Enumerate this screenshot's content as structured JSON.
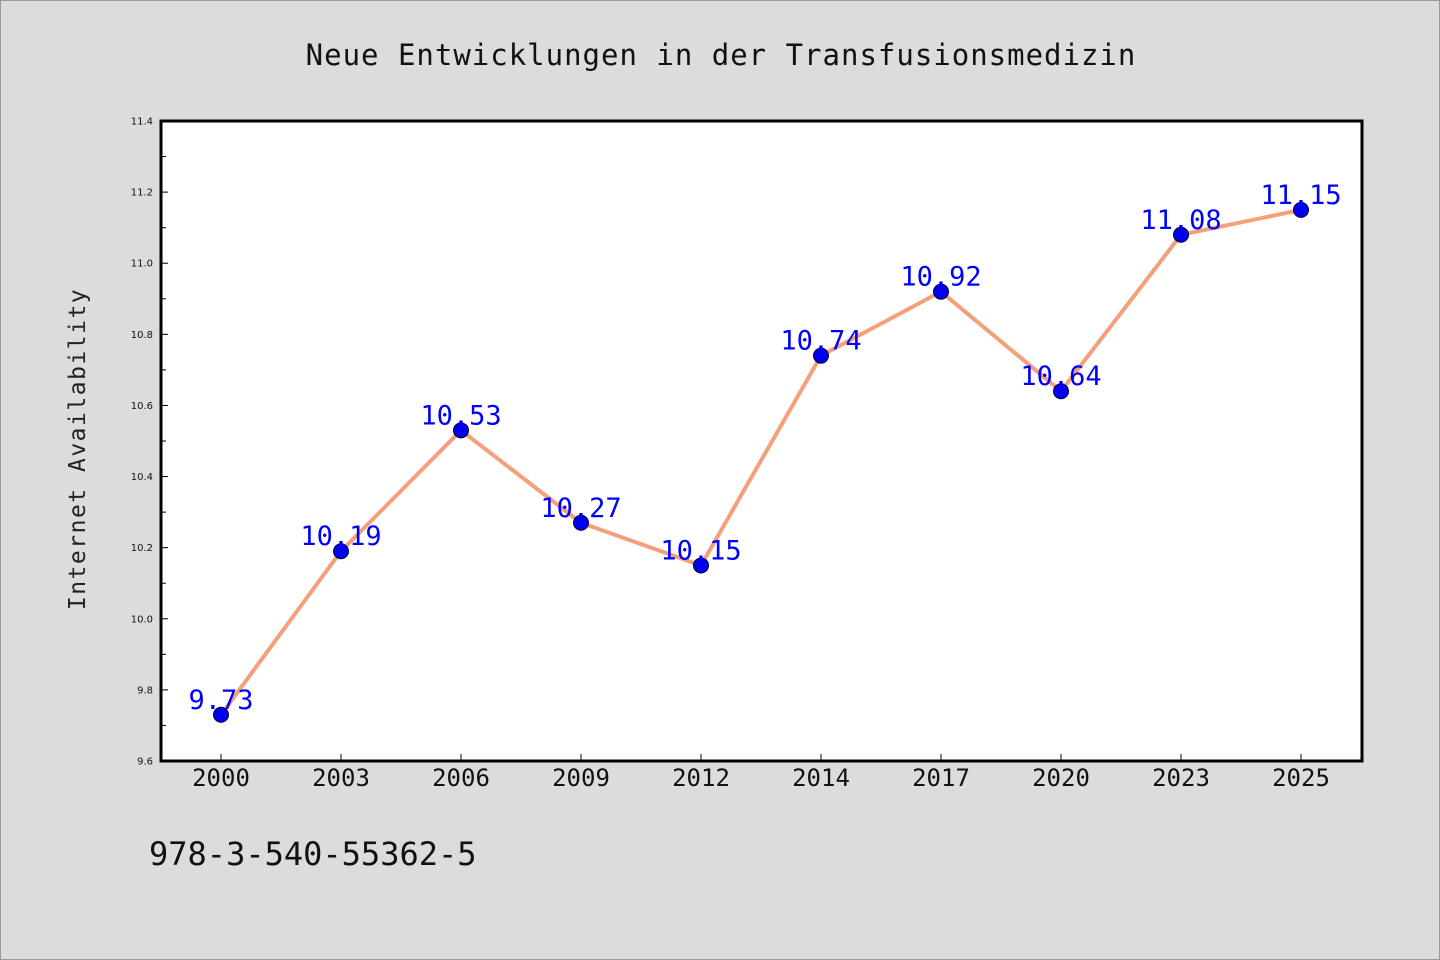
{
  "chart_data": {
    "type": "line",
    "title": "Neue Entwicklungen in der Transfusionsmedizin",
    "xlabel": "",
    "ylabel": "Internet Availability",
    "categories": [
      "2000",
      "2003",
      "2006",
      "2009",
      "2012",
      "2014",
      "2017",
      "2020",
      "2023",
      "2025"
    ],
    "series": [
      {
        "values": [
          9.73,
          10.19,
          10.53,
          10.27,
          10.15,
          10.74,
          10.92,
          10.64,
          11.08,
          11.15
        ],
        "data_labels": [
          "9.73",
          "10.19",
          "10.53",
          "10.27",
          "10.15",
          "10.74",
          "10.92",
          "10.64",
          "11.08",
          "11.15"
        ],
        "line_color": "#f4a07a",
        "marker_color": "#0000ee",
        "label_color": "#0000ff"
      }
    ],
    "ylim": [
      9.6,
      11.4
    ],
    "yticks": [
      "9.6",
      "9.8",
      "10.0",
      "10.2",
      "10.4",
      "10.6",
      "10.8",
      "11.0",
      "11.2",
      "11.4"
    ],
    "grid": false,
    "legend": "none"
  },
  "footnote": "978-3-540-55362-5",
  "colors": {
    "background": "#dcdcdc",
    "plot_area": "#ffffff",
    "axes": "#000000"
  }
}
